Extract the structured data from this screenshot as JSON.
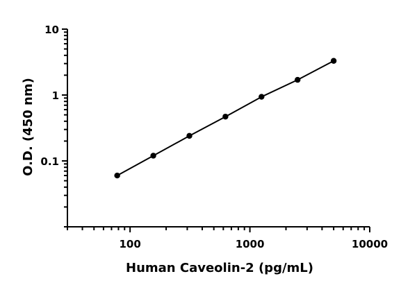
{
  "chart_data": {
    "type": "line",
    "title": "",
    "xlabel": "Human Caveolin-2 (pg/mL)",
    "ylabel": "O.D. (450 nm)",
    "x_scale": "log",
    "y_scale": "log",
    "xlim": [
      30,
      10000
    ],
    "ylim": [
      0.01,
      10
    ],
    "x_ticks": [
      {
        "value": 100,
        "label": "100"
      },
      {
        "value": 1000,
        "label": "1000"
      },
      {
        "value": 10000,
        "label": "10000"
      }
    ],
    "y_ticks": [
      {
        "value": 0.1,
        "label": "0.1"
      },
      {
        "value": 1,
        "label": "1"
      },
      {
        "value": 10,
        "label": "10"
      }
    ],
    "grid": false,
    "legend": "none",
    "series": [
      {
        "x": [
          78.1,
          156.3,
          312.5,
          625,
          1250,
          2500,
          5000
        ],
        "y": [
          0.06,
          0.12,
          0.24,
          0.47,
          0.94,
          1.7,
          3.3
        ],
        "marker": "circle",
        "color": "#000000"
      }
    ]
  }
}
